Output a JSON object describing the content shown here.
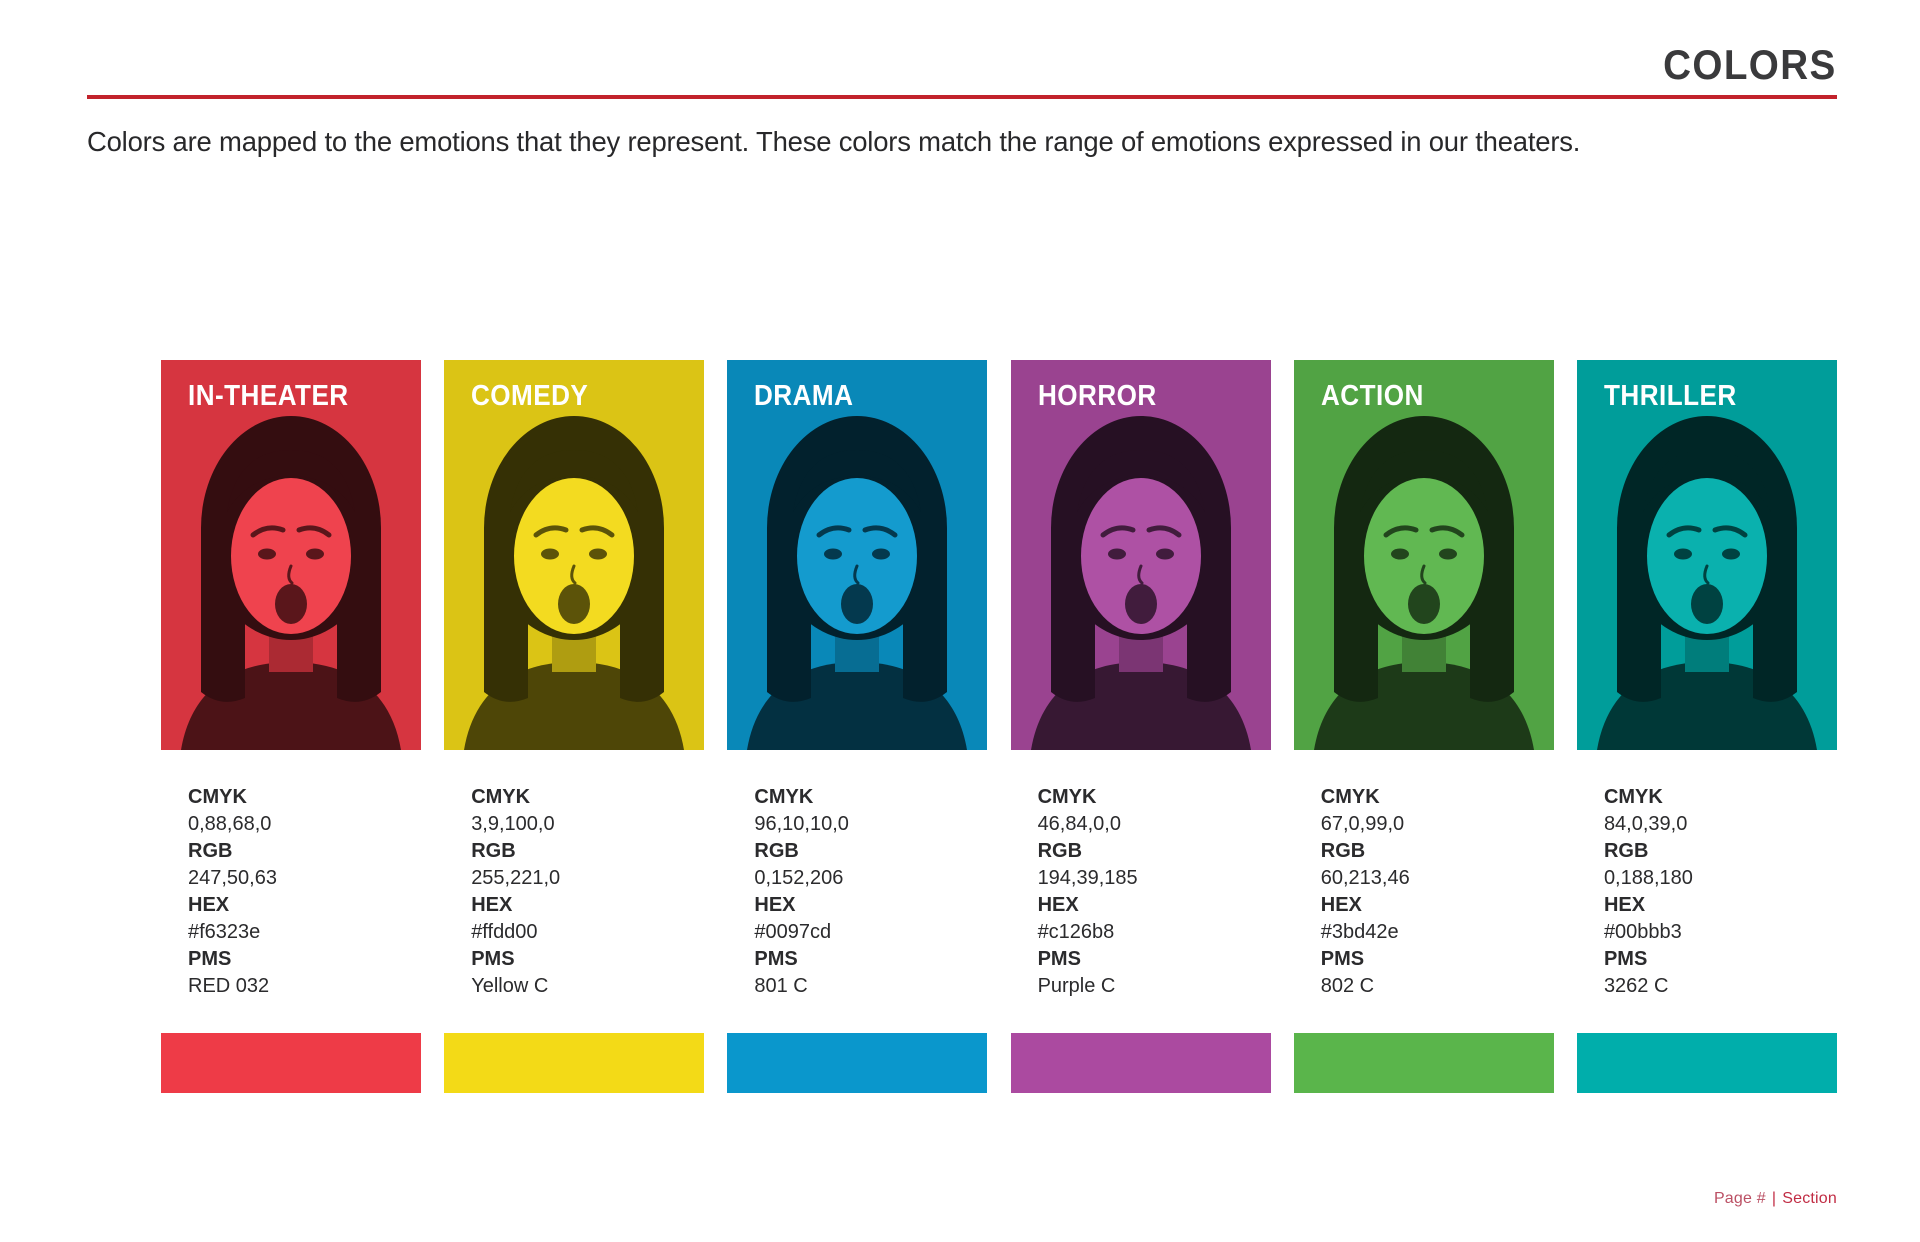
{
  "header": {
    "title": "COLORS",
    "intro": "Colors are mapped to the emotions that they represent. These colors match the range of emotions expressed in our theaters.",
    "accent_color": "#c2222b"
  },
  "spec_labels": {
    "cmyk": "CMYK",
    "rgb": "RGB",
    "hex": "HEX",
    "pms": "PMS"
  },
  "swatches": [
    {
      "label": "IN-THEATER",
      "cmyk": "0,88,68,0",
      "rgb": "247,50,63",
      "hex": "#f6323e",
      "pms": "RED 032",
      "display_hex": "#ee3b47"
    },
    {
      "label": "COMEDY",
      "cmyk": "3,9,100,0",
      "rgb": "255,221,0",
      "hex": "#ffdd00",
      "pms": "Yellow C",
      "display_hex": "#f3da17"
    },
    {
      "label": "DRAMA",
      "cmyk": "96,10,10,0",
      "rgb": "0,152,206",
      "hex": "#0097cd",
      "pms": "801 C",
      "display_hex": "#0a97cc"
    },
    {
      "label": "HORROR",
      "cmyk": "46,84,0,0",
      "rgb": "194,39,185",
      "hex": "#c126b8",
      "pms": "Purple C",
      "display_hex": "#ab4aa0"
    },
    {
      "label": "ACTION",
      "cmyk": "67,0,99,0",
      "rgb": "60,213,46",
      "hex": "#3bd42e",
      "pms": "802 C",
      "display_hex": "#5ab54b"
    },
    {
      "label": "THRILLER",
      "cmyk": "84,0,39,0",
      "rgb": "0,188,180",
      "hex": "#00bbb3",
      "pms": "3262 C",
      "display_hex": "#00aeab"
    }
  ],
  "footer": {
    "page_label": "Page #",
    "separator": "|",
    "section_label": "Section",
    "page_label_color": "#bb5064",
    "accent_color": "#c12c44"
  }
}
